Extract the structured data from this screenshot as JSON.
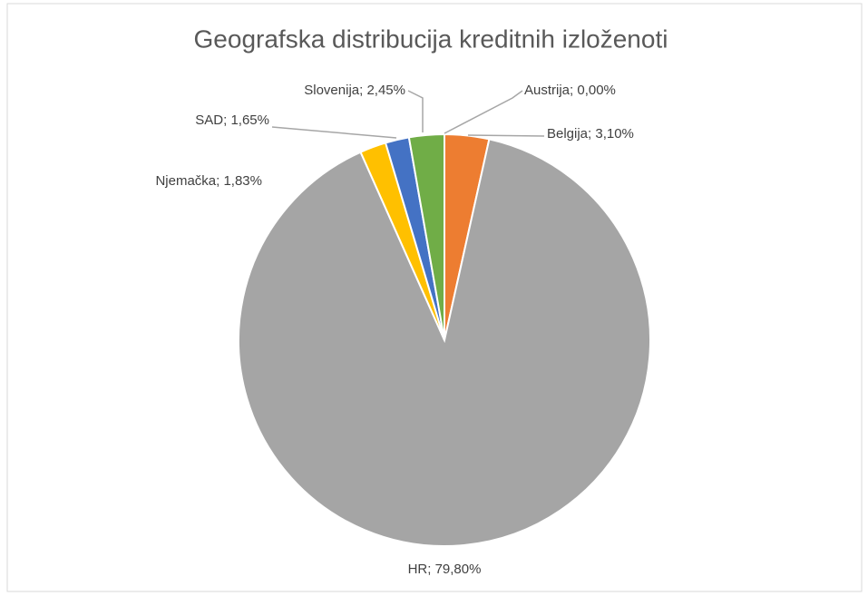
{
  "chart_data": {
    "type": "pie",
    "title": "Geografska distribucija kreditnih izloženoti",
    "values": [
      0.0,
      3.1,
      79.8,
      1.83,
      1.65,
      2.45
    ],
    "value_labels": [
      "Austrija; 0,00%",
      "Belgija; 3,10%",
      "HR; 79,80%",
      "Njemačka; 1,83%",
      "SAD; 1,65%",
      "Slovenija; 2,45%"
    ],
    "colors": [
      "#4472c4",
      "#ed7d31",
      "#a5a5a5",
      "#ffc000",
      "#4472c4",
      "#70ad47"
    ]
  }
}
